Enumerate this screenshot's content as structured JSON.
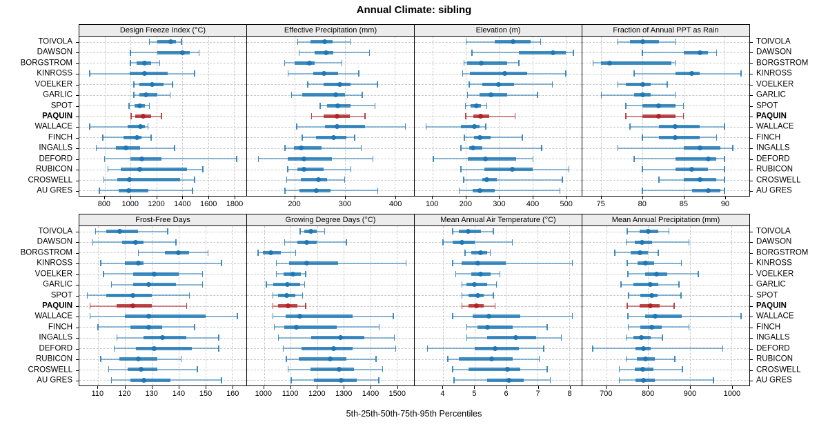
{
  "figure": {
    "title": "Annual Climate: sibling",
    "caption": "5th-25th-50th-75th-95th Percentiles"
  },
  "chart_data": {
    "type": "dotplot",
    "subtype": "percentile-interval-trellis",
    "title": "Annual Climate: sibling",
    "caption": "5th-25th-50th-75th-95th Percentiles",
    "percentiles": [
      5,
      25,
      50,
      75,
      95
    ],
    "legend": "none",
    "grid": "dashed",
    "sites": [
      "TOIVOLA",
      "DAWSON",
      "BORGSTROM",
      "KINROSS",
      "VOELKER",
      "GARLIC",
      "SPOT",
      "PAQUIN",
      "WALLACE",
      "FINCH",
      "INGALLS",
      "DEFORD",
      "RUBICON",
      "CROSWELL",
      "AU GRES"
    ],
    "highlight_site": "PAQUIN",
    "colors": {
      "series": "#1f77b4",
      "highlight": "#b02428",
      "strip_bg": "#ececec",
      "gridline": "#c9c9c9"
    },
    "panels": [
      {
        "title": "Design Freeze Index (°C)",
        "row": 0,
        "xlim": [
          605,
          1895
        ],
        "ticks": [
          800,
          1000,
          1200,
          1400,
          1600,
          1800
        ],
        "values": [
          [
            1145,
            1210,
            1310,
            1350,
            1395
          ],
          [
            1000,
            1210,
            1400,
            1460,
            1530
          ],
          [
            1000,
            1050,
            1110,
            1160,
            1225
          ],
          [
            685,
            995,
            1110,
            1290,
            1495
          ],
          [
            1025,
            1070,
            1170,
            1255,
            1325
          ],
          [
            1025,
            1070,
            1120,
            1210,
            1305
          ],
          [
            990,
            1030,
            1070,
            1110,
            1145
          ],
          [
            1005,
            1035,
            1100,
            1160,
            1240
          ],
          [
            685,
            980,
            1075,
            1110,
            1135
          ],
          [
            785,
            945,
            1050,
            1085,
            1160
          ],
          [
            735,
            890,
            965,
            1075,
            1340
          ],
          [
            800,
            1000,
            1090,
            1240,
            1820
          ],
          [
            825,
            925,
            1070,
            1435,
            1560
          ],
          [
            795,
            900,
            990,
            1385,
            1495
          ],
          [
            760,
            910,
            985,
            1140,
            1480
          ]
        ]
      },
      {
        "title": "Effective Precipitation (mm)",
        "row": 0,
        "xlim": [
          105,
          438
        ],
        "ticks": [
          200,
          300,
          400
        ],
        "values": [
          [
            206,
            232,
            260,
            276,
            311
          ],
          [
            209,
            240,
            263,
            277,
            349
          ],
          [
            180,
            200,
            230,
            240,
            294
          ],
          [
            187,
            237,
            258,
            287,
            328
          ],
          [
            226,
            258,
            290,
            312,
            365
          ],
          [
            194,
            215,
            282,
            300,
            335
          ],
          [
            251,
            265,
            286,
            312,
            360
          ],
          [
            234,
            258,
            285,
            310,
            340
          ],
          [
            204,
            260,
            284,
            340,
            421
          ],
          [
            215,
            242,
            278,
            303,
            320
          ],
          [
            181,
            199,
            213,
            253,
            333
          ],
          [
            128,
            186,
            218,
            274,
            356
          ],
          [
            186,
            205,
            218,
            258,
            312
          ],
          [
            184,
            212,
            248,
            265,
            300
          ],
          [
            181,
            210,
            243,
            271,
            366
          ]
        ]
      },
      {
        "title": "Elevation (m)",
        "row": 0,
        "xlim": [
          46,
          548
        ],
        "ticks": [
          100,
          200,
          300,
          400,
          500
        ],
        "values": [
          [
            201,
            286,
            341,
            394,
            425
          ],
          [
            218,
            360,
            462,
            501,
            523
          ],
          [
            194,
            204,
            246,
            325,
            359
          ],
          [
            190,
            211,
            317,
            384,
            500
          ],
          [
            210,
            250,
            298,
            345,
            460
          ],
          [
            205,
            240,
            276,
            325,
            415
          ],
          [
            198,
            215,
            231,
            245,
            263
          ],
          [
            200,
            222,
            245,
            270,
            348
          ],
          [
            80,
            185,
            226,
            240,
            260
          ],
          [
            195,
            225,
            243,
            275,
            370
          ],
          [
            185,
            210,
            222,
            250,
            428
          ],
          [
            102,
            205,
            259,
            350,
            402
          ],
          [
            185,
            255,
            339,
            400,
            510
          ],
          [
            193,
            250,
            263,
            293,
            490
          ],
          [
            180,
            220,
            241,
            286,
            483
          ]
        ]
      },
      {
        "title": "Fraction of Annual PPT as Rain",
        "row": 0,
        "xlim": [
          72.7,
          93
        ],
        "ticks": [
          75,
          80,
          85,
          90
        ],
        "values": [
          [
            77,
            78.5,
            80,
            82,
            84
          ],
          [
            80,
            85,
            87,
            88,
            89
          ],
          [
            74,
            75,
            76,
            83.5,
            84
          ],
          [
            79,
            84,
            86,
            87,
            92
          ],
          [
            77,
            78,
            80,
            81,
            83
          ],
          [
            75,
            79,
            80,
            81,
            84
          ],
          [
            78,
            80,
            82,
            84,
            85
          ],
          [
            78,
            80,
            82,
            84,
            85
          ],
          [
            78.5,
            82,
            84,
            87,
            90
          ],
          [
            80,
            82,
            84,
            87,
            89
          ],
          [
            77,
            85,
            87,
            89.5,
            91
          ],
          [
            79,
            84,
            88,
            89,
            90
          ],
          [
            80,
            84,
            86,
            88,
            90
          ],
          [
            82,
            85,
            87,
            89,
            90
          ],
          [
            80,
            86,
            88,
            89.5,
            90
          ]
        ]
      },
      {
        "title": "Frost-Free Days",
        "row": 1,
        "xlim": [
          103,
          165.3
        ],
        "ticks": [
          110,
          120,
          130,
          140,
          150,
          160
        ],
        "values": [
          [
            109,
            113,
            118,
            125,
            136
          ],
          [
            108,
            119,
            124,
            127,
            139
          ],
          [
            125,
            135,
            140,
            144,
            151
          ],
          [
            111,
            120,
            125,
            127,
            156
          ],
          [
            112,
            123,
            131,
            140,
            149
          ],
          [
            115,
            123,
            129,
            139,
            149
          ],
          [
            106,
            113,
            123,
            130,
            144
          ],
          [
            107,
            117,
            123,
            130,
            143
          ],
          [
            107,
            120,
            129,
            150,
            162
          ],
          [
            110,
            122,
            129,
            134,
            146
          ],
          [
            117,
            127,
            134,
            143,
            155
          ],
          [
            116,
            124,
            131,
            145,
            155
          ],
          [
            111,
            118,
            125,
            132,
            141
          ],
          [
            114,
            121,
            126,
            132,
            147
          ],
          [
            115,
            122,
            127,
            137,
            156
          ]
        ]
      },
      {
        "title": "Growing Degree Days (°C)",
        "row": 1,
        "xlim": [
          936,
          1565
        ],
        "ticks": [
          1000,
          1100,
          1200,
          1300,
          1400,
          1500
        ],
        "values": [
          [
            1136,
            1151,
            1177,
            1198,
            1228
          ],
          [
            1078,
            1125,
            1160,
            1198,
            1310
          ],
          [
            978,
            996,
            1026,
            1064,
            1119
          ],
          [
            1047,
            1095,
            1160,
            1280,
            1535
          ],
          [
            1047,
            1073,
            1110,
            1138,
            1157
          ],
          [
            1009,
            1034,
            1088,
            1136,
            1153
          ],
          [
            1033,
            1052,
            1086,
            1119,
            1145
          ],
          [
            1033,
            1052,
            1090,
            1125,
            1157
          ],
          [
            1034,
            1082,
            1134,
            1334,
            1487
          ],
          [
            1039,
            1076,
            1121,
            1274,
            1434
          ],
          [
            1054,
            1177,
            1289,
            1379,
            1491
          ],
          [
            1073,
            1142,
            1261,
            1334,
            1496
          ],
          [
            1084,
            1131,
            1250,
            1310,
            1422
          ],
          [
            1091,
            1174,
            1283,
            1340,
            1447
          ],
          [
            1102,
            1188,
            1291,
            1349,
            1432
          ]
        ]
      },
      {
        "title": "Mean Annual Air Temperature (°C)",
        "row": 1,
        "xlim": [
          3.1,
          8.4
        ],
        "ticks": [
          4,
          5,
          6,
          7,
          8
        ],
        "values": [
          [
            4.3,
            4.5,
            4.8,
            5.2,
            5.6
          ],
          [
            4.0,
            4.3,
            4.6,
            5.0,
            6.2
          ],
          [
            4.7,
            4.9,
            5.2,
            5.4,
            5.5
          ],
          [
            4.3,
            4.6,
            5.1,
            6.0,
            8.1
          ],
          [
            4.4,
            4.9,
            5.2,
            5.5,
            5.8
          ],
          [
            4.6,
            4.75,
            5.0,
            5.4,
            5.7
          ],
          [
            4.6,
            4.8,
            5.1,
            5.3,
            5.6
          ],
          [
            4.6,
            4.8,
            5.05,
            5.3,
            5.65
          ],
          [
            4.3,
            4.95,
            5.45,
            6.45,
            8.1
          ],
          [
            4.75,
            5.1,
            5.4,
            6.2,
            7.3
          ],
          [
            4.75,
            5.4,
            6.3,
            6.95,
            7.75
          ],
          [
            3.5,
            5.0,
            5.65,
            6.4,
            7.2
          ],
          [
            4.15,
            4.5,
            5.55,
            6.2,
            7.05
          ],
          [
            4.3,
            4.8,
            6.05,
            6.45,
            7.3
          ],
          [
            4.35,
            5.4,
            6.1,
            6.55,
            7.4
          ]
        ]
      },
      {
        "title": "Mean Annual Precipitation (mm)",
        "row": 1,
        "xlim": [
          642,
          1043
        ],
        "ticks": [
          700,
          800,
          900,
          1000
        ],
        "values": [
          [
            750,
            780,
            800,
            825,
            850
          ],
          [
            747,
            768,
            786,
            810,
            898
          ],
          [
            720,
            758,
            780,
            800,
            824
          ],
          [
            750,
            775,
            794,
            815,
            880
          ],
          [
            751,
            792,
            820,
            845,
            920
          ],
          [
            735,
            764,
            806,
            824,
            874
          ],
          [
            753,
            782,
            808,
            823,
            879
          ],
          [
            750,
            779,
            805,
            828,
            862
          ],
          [
            751,
            792,
            816,
            880,
            1023
          ],
          [
            752,
            782,
            808,
            832,
            898
          ],
          [
            747,
            765,
            783,
            806,
            834
          ],
          [
            667,
            769,
            788,
            806,
            979
          ],
          [
            747,
            773,
            794,
            816,
            864
          ],
          [
            731,
            768,
            787,
            813,
            882
          ],
          [
            731,
            769,
            788,
            816,
            957
          ]
        ]
      }
    ]
  }
}
